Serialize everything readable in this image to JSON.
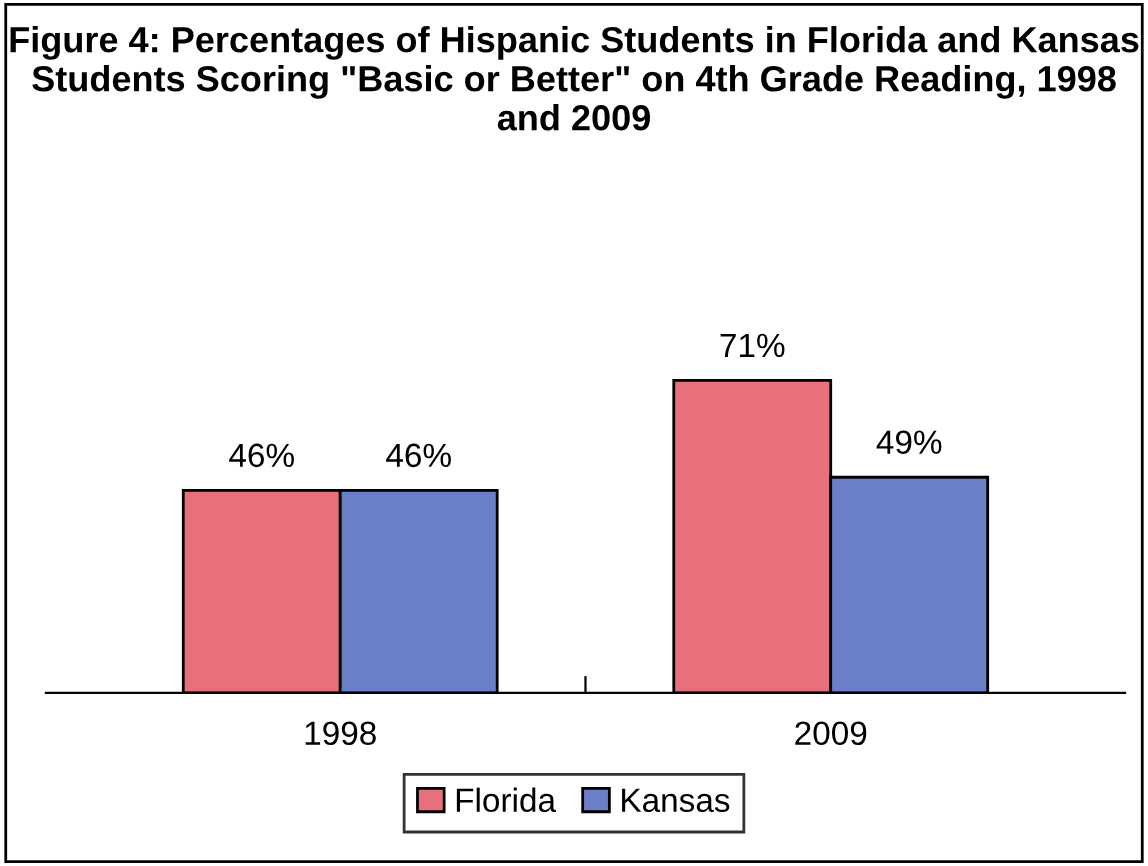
{
  "chart_data": {
    "type": "bar",
    "title": "Figure 4: Percentages of Hispanic Students in Florida and Kansas Students Scoring \"Basic or Better\" on 4th Grade Reading, 1998 and 2009",
    "categories": [
      "1998",
      "2009"
    ],
    "series": [
      {
        "name": "Florida",
        "color": "#e8707c",
        "values": [
          46,
          71
        ],
        "value_labels": [
          "46%",
          "71%"
        ]
      },
      {
        "name": "Kansas",
        "color": "#6a7fc8",
        "values": [
          46,
          49
        ],
        "value_labels": [
          "46%",
          "49%"
        ]
      }
    ],
    "legend": "bottom",
    "grid": false
  }
}
